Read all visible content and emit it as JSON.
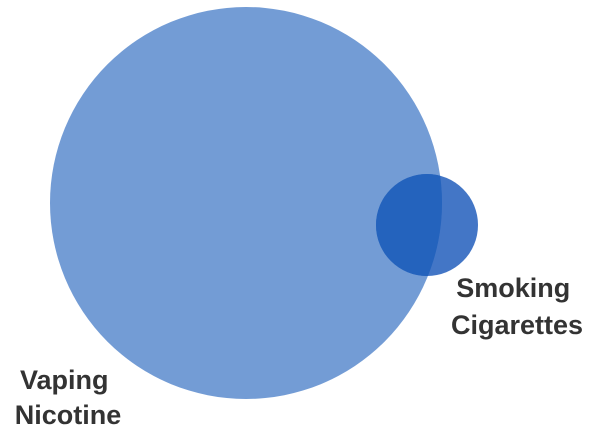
{
  "diagram": {
    "type": "venn",
    "sets": [
      {
        "id": "vaping",
        "label_lines": [
          "Vaping",
          "Nicotine"
        ],
        "color": "#5b8bce"
      },
      {
        "id": "smoking",
        "label_lines": [
          "Smoking",
          "Cigarettes"
        ],
        "color": "#2f67c0"
      }
    ],
    "overlap_color": "#2463bd",
    "label_color": "#333333",
    "background": "#ffffff"
  }
}
